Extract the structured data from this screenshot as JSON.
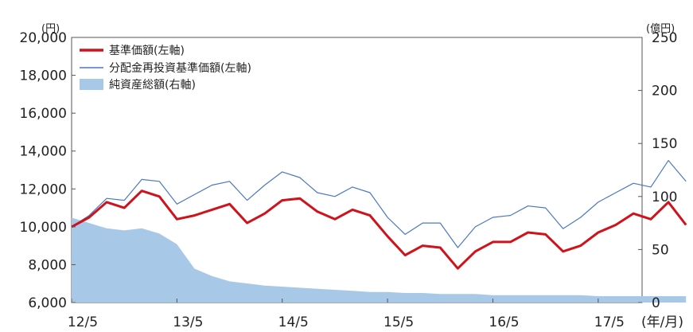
{
  "header_fragment": "",
  "chart_data": {
    "type": "line",
    "title": "",
    "left_axis": {
      "unit": "(円)",
      "ylim": [
        6000,
        20000
      ],
      "ticks": [
        6000,
        8000,
        10000,
        12000,
        14000,
        16000,
        18000,
        20000
      ],
      "tick_labels": [
        "6,000",
        "8,000",
        "10,000",
        "12,000",
        "14,000",
        "16,000",
        "18,000",
        "20,000"
      ]
    },
    "right_axis": {
      "unit": "(億円)",
      "ylim": [
        0,
        250
      ],
      "ticks": [
        0,
        50,
        100,
        150,
        200,
        250
      ],
      "tick_labels": [
        "0",
        "50",
        "100",
        "150",
        "200",
        "250"
      ]
    },
    "x_axis": {
      "unit": "(年/月)",
      "tick_labels": [
        "12/5",
        "13/5",
        "14/5",
        "15/5",
        "16/5",
        "17/5"
      ],
      "tick_months": [
        0,
        12,
        24,
        36,
        48,
        60
      ],
      "range_months": [
        0,
        65
      ]
    },
    "legend": {
      "placement": "top-left"
    },
    "colors": {
      "nav": "#d0121b",
      "reinvested": "#4a78c4",
      "assets": "#a8c8e8"
    },
    "series": [
      {
        "name": "基準価額(左軸)",
        "axis": "left",
        "style": "line",
        "color": "#d0121b",
        "x": [
          "12/5",
          "12/7",
          "12/9",
          "12/11",
          "13/1",
          "13/3",
          "13/5",
          "13/7",
          "13/9",
          "13/11",
          "14/1",
          "14/3",
          "14/5",
          "14/7",
          "14/9",
          "14/11",
          "15/1",
          "15/3",
          "15/5",
          "15/7",
          "15/9",
          "15/11",
          "16/1",
          "16/3",
          "16/5",
          "16/7",
          "16/9",
          "16/11",
          "17/1",
          "17/3",
          "17/5",
          "17/7",
          "17/9",
          "17/11",
          "18/1",
          "18/3"
        ],
        "values": [
          10000,
          10500,
          11300,
          11000,
          11900,
          11600,
          10400,
          10600,
          10900,
          11200,
          10200,
          10700,
          11400,
          11500,
          10800,
          10400,
          10900,
          10600,
          9500,
          8500,
          9000,
          8900,
          7800,
          8700,
          9200,
          9200,
          9700,
          9600,
          8700,
          9000,
          9700,
          10100,
          10700,
          10400,
          11300,
          10100
        ]
      },
      {
        "name": "分配金再投資基準価額(左軸)",
        "axis": "left",
        "style": "line",
        "color": "#4a78c4",
        "x": [
          "12/5",
          "12/7",
          "12/9",
          "12/11",
          "13/1",
          "13/3",
          "13/5",
          "13/7",
          "13/9",
          "13/11",
          "14/1",
          "14/3",
          "14/5",
          "14/7",
          "14/9",
          "14/11",
          "15/1",
          "15/3",
          "15/5",
          "15/7",
          "15/9",
          "15/11",
          "16/1",
          "16/3",
          "16/5",
          "16/7",
          "16/9",
          "16/11",
          "17/1",
          "17/3",
          "17/5",
          "17/7",
          "17/9",
          "17/11",
          "18/1",
          "18/3"
        ],
        "values": [
          10000,
          10600,
          11500,
          11400,
          12500,
          12400,
          11200,
          11700,
          12200,
          12400,
          11400,
          12200,
          12900,
          12600,
          11800,
          11600,
          12100,
          11800,
          10500,
          9600,
          10200,
          10200,
          8900,
          10000,
          10500,
          10600,
          11100,
          11000,
          9900,
          10500,
          11300,
          11800,
          12300,
          12100,
          13500,
          12400
        ]
      },
      {
        "name": "純資産総額(右軸)",
        "axis": "right",
        "style": "area",
        "color": "#a8c8e8",
        "x": [
          "12/5",
          "12/7",
          "12/9",
          "12/11",
          "13/1",
          "13/3",
          "13/5",
          "13/7",
          "13/9",
          "13/11",
          "14/1",
          "14/3",
          "14/5",
          "14/7",
          "14/9",
          "14/11",
          "15/1",
          "15/3",
          "15/5",
          "15/7",
          "15/9",
          "15/11",
          "16/1",
          "16/3",
          "16/5",
          "16/7",
          "16/9",
          "16/11",
          "17/1",
          "17/3",
          "17/5",
          "17/7",
          "17/9",
          "17/11",
          "18/1",
          "18/3"
        ],
        "values": [
          80,
          75,
          70,
          68,
          70,
          65,
          55,
          32,
          25,
          20,
          18,
          16,
          15,
          14,
          13,
          12,
          11,
          10,
          10,
          9,
          9,
          8,
          8,
          8,
          7,
          7,
          7,
          7,
          7,
          7,
          6,
          6,
          6,
          6,
          6,
          6
        ]
      }
    ]
  }
}
